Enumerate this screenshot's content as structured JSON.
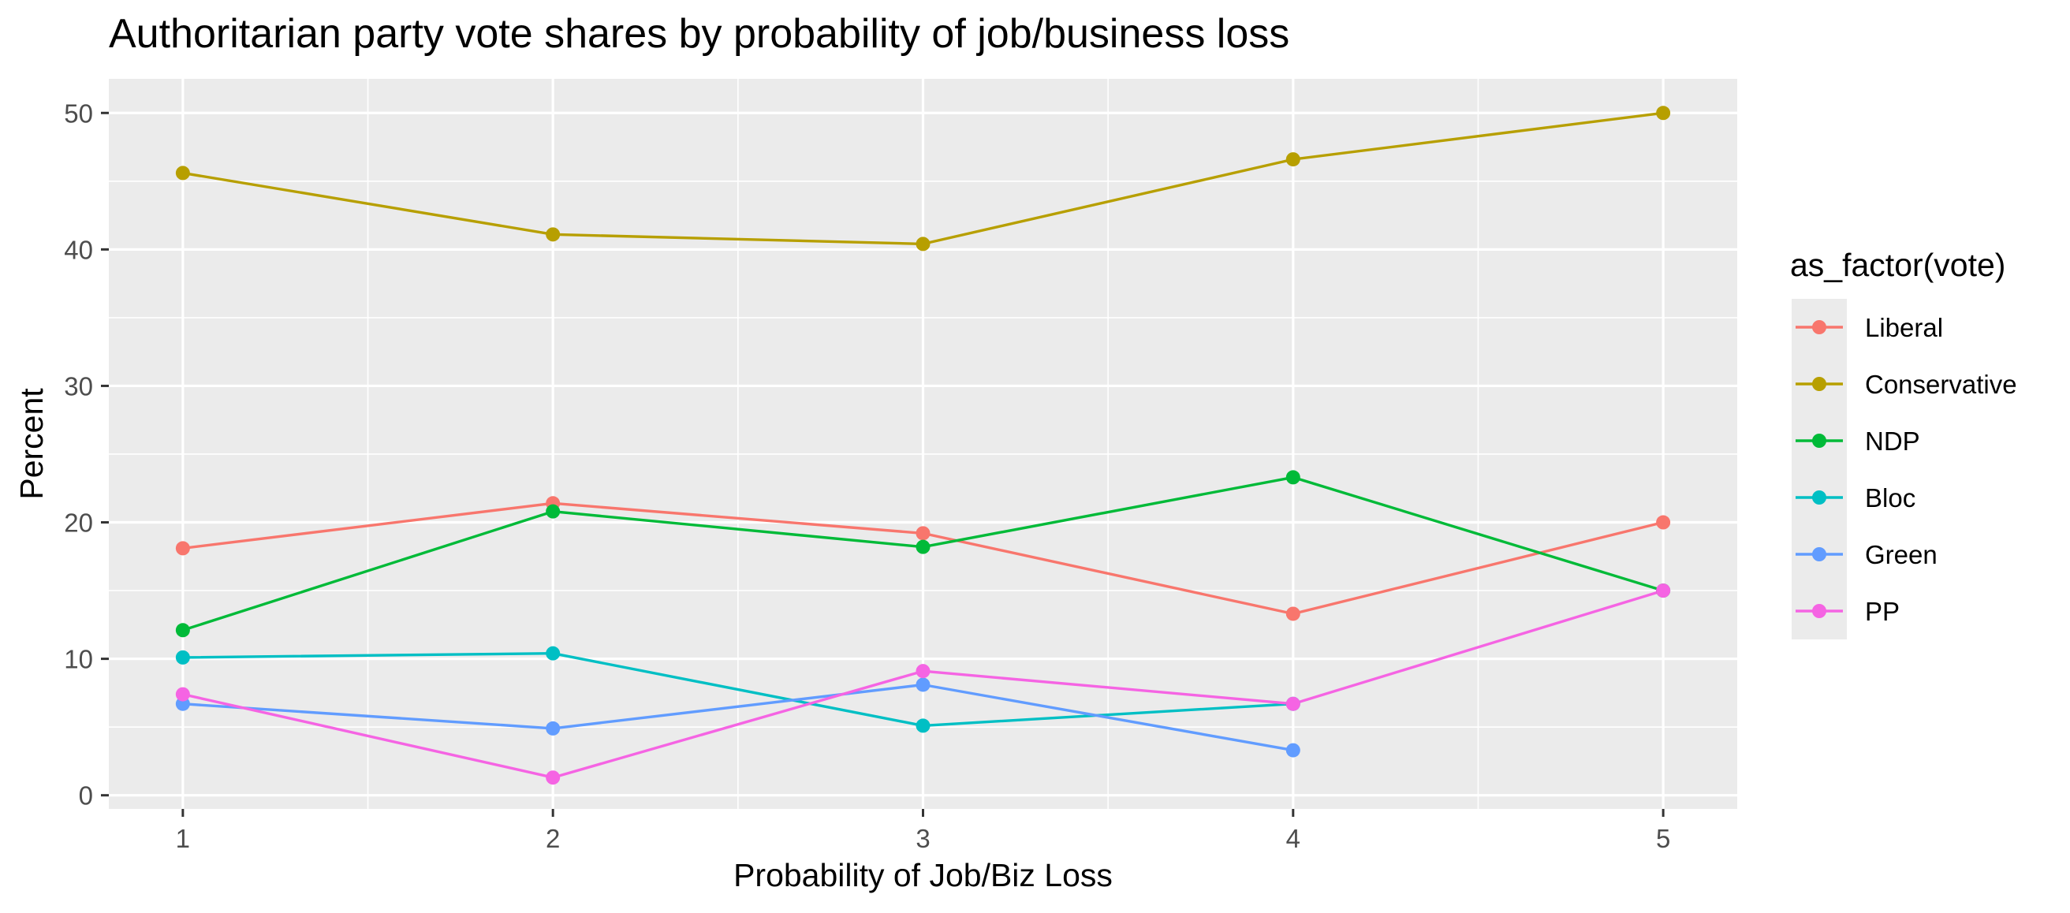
{
  "chart_data": {
    "type": "line",
    "title": "Authoritarian party vote shares by probability of job/business loss",
    "xlabel": "Probability of Job/Biz Loss",
    "ylabel": "Percent",
    "x": [
      1,
      2,
      3,
      4,
      5
    ],
    "x_ticks": [
      "1",
      "2",
      "3",
      "4",
      "5"
    ],
    "y_ticks": [
      "0",
      "10",
      "20",
      "30",
      "40",
      "50"
    ],
    "xlim": [
      0.8,
      5.2
    ],
    "ylim": [
      -1.0,
      52.5
    ],
    "grid": true,
    "legend_title": "as_factor(vote)",
    "legend_position": "right",
    "series": [
      {
        "name": "Liberal",
        "color": "#F8766D",
        "x": [
          1,
          2,
          3,
          4,
          5
        ],
        "values": [
          18.1,
          21.4,
          19.2,
          13.3,
          20.0
        ]
      },
      {
        "name": "Conservative",
        "color": "#B79F00",
        "x": [
          1,
          2,
          3,
          4,
          5
        ],
        "values": [
          45.6,
          41.1,
          40.4,
          46.6,
          50.0
        ]
      },
      {
        "name": "NDP",
        "color": "#00BA38",
        "x": [
          1,
          2,
          3,
          4,
          5
        ],
        "values": [
          12.1,
          20.8,
          18.2,
          23.3,
          15.0
        ]
      },
      {
        "name": "Bloc",
        "color": "#00BFC4",
        "x": [
          1,
          2,
          3,
          4
        ],
        "values": [
          10.1,
          10.4,
          5.1,
          6.7
        ]
      },
      {
        "name": "Green",
        "color": "#619CFF",
        "x": [
          1,
          2,
          3,
          4
        ],
        "values": [
          6.7,
          4.9,
          8.1,
          3.3
        ]
      },
      {
        "name": "PP",
        "color": "#F564E3",
        "x": [
          1,
          2,
          3,
          4,
          5
        ],
        "values": [
          7.4,
          1.3,
          9.1,
          6.7,
          15.0
        ]
      }
    ]
  }
}
